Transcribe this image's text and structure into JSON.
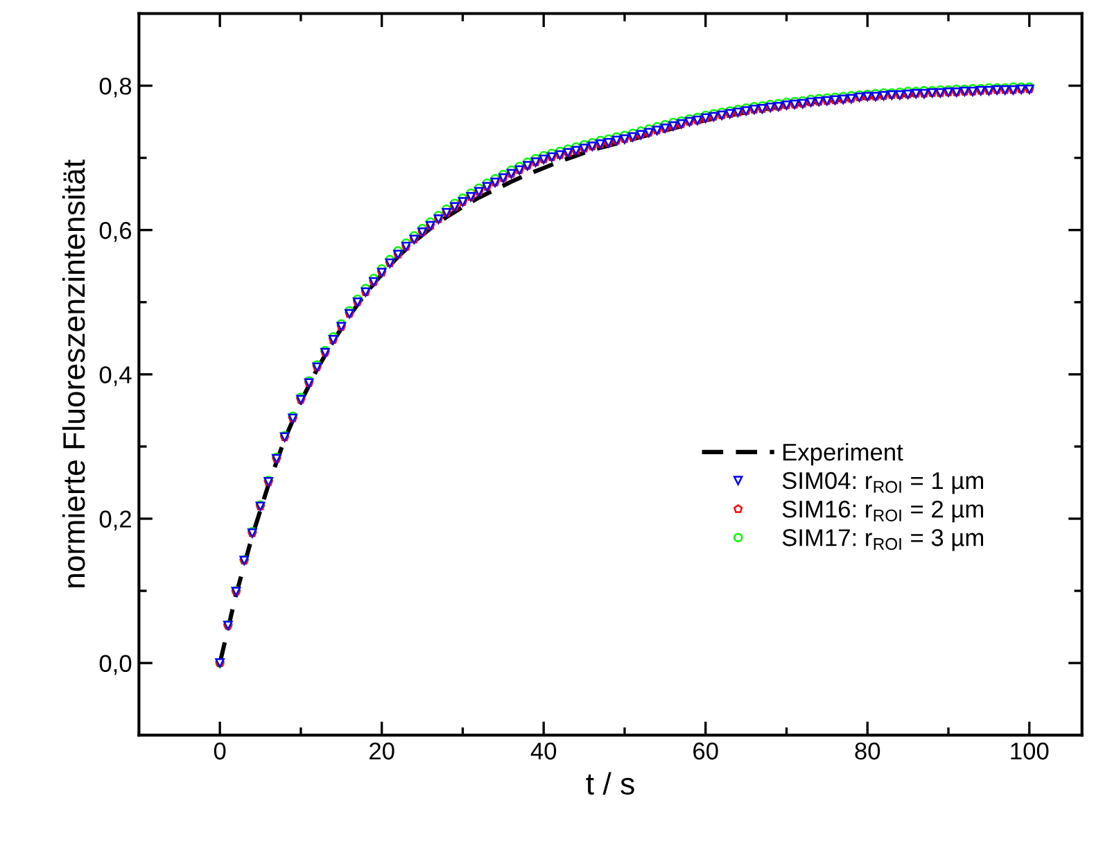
{
  "chart_data": {
    "type": "line",
    "xlabel": "t / s",
    "ylabel": "normierte Fluoreszenzintensität",
    "xlim": [
      -10,
      106.5
    ],
    "ylim": [
      -0.1,
      0.9
    ],
    "xticks": [
      0,
      {
        "value": 10,
        "label": null
      },
      20,
      {
        "value": 30,
        "label": null
      },
      40,
      {
        "value": 50,
        "label": null
      },
      60,
      {
        "value": 70,
        "label": null
      },
      80,
      {
        "value": 90,
        "label": null
      },
      100
    ],
    "yticks": [
      {
        "value": 0,
        "label": "0,0"
      },
      {
        "value": 0.1,
        "label": null
      },
      {
        "value": 0.2,
        "label": "0,2"
      },
      {
        "value": 0.3,
        "label": null
      },
      {
        "value": 0.4,
        "label": "0,4"
      },
      {
        "value": 0.5,
        "label": null
      },
      {
        "value": 0.6,
        "label": "0,6"
      },
      {
        "value": 0.7,
        "label": null
      },
      {
        "value": 0.8,
        "label": "0,8"
      }
    ],
    "grid": false,
    "legend": "right",
    "x": [
      0,
      1,
      2,
      3,
      4,
      5,
      6,
      7,
      8,
      9,
      10,
      11,
      12,
      13,
      14,
      15,
      16,
      17,
      18,
      19,
      20,
      21,
      22,
      23,
      24,
      25,
      26,
      27,
      28,
      29,
      30,
      31,
      32,
      33,
      34,
      35,
      36,
      37,
      38,
      39,
      40,
      41,
      42,
      43,
      44,
      45,
      46,
      47,
      48,
      49,
      50,
      51,
      52,
      53,
      54,
      55,
      56,
      57,
      58,
      59,
      60,
      61,
      62,
      63,
      64,
      65,
      66,
      67,
      68,
      69,
      70,
      71,
      72,
      73,
      74,
      75,
      76,
      77,
      78,
      79,
      80,
      81,
      82,
      83,
      84,
      85,
      86,
      87,
      88,
      89,
      90,
      91,
      92,
      93,
      94,
      95,
      96,
      97,
      98,
      99,
      100
    ],
    "series": [
      {
        "name": "Experiment",
        "color": "#000000",
        "line_style": "dashed",
        "marker": "none",
        "x": [
          0,
          2,
          4,
          6,
          8,
          10,
          12,
          14,
          16,
          18,
          20,
          22,
          24,
          26,
          28,
          30,
          32,
          34,
          36,
          38,
          40,
          42,
          44,
          46,
          48,
          50,
          52,
          54,
          56,
          58,
          60,
          62,
          64,
          66,
          68,
          70,
          72,
          74,
          76,
          78,
          80,
          82,
          84,
          86
        ],
        "values": [
          0.0,
          0.095,
          0.176,
          0.247,
          0.31,
          0.362,
          0.407,
          0.446,
          0.481,
          0.512,
          0.539,
          0.563,
          0.584,
          0.602,
          0.618,
          0.632,
          0.645,
          0.656,
          0.667,
          0.677,
          0.686,
          0.695,
          0.703,
          0.711,
          0.717,
          0.723,
          0.729,
          0.735,
          0.741,
          0.747,
          0.752,
          0.757,
          0.761,
          0.765,
          0.769,
          0.772,
          0.775,
          0.778,
          0.78,
          0.782,
          0.784,
          0.786,
          0.787,
          0.788
        ]
      },
      {
        "name": "SIM04: r$_{ROI}$ = 1 µm",
        "type": "scatter",
        "color": "#0000ff",
        "marker": "triangle",
        "values": [
          0.0,
          0.052,
          0.099,
          0.142,
          0.18,
          0.217,
          0.251,
          0.283,
          0.313,
          0.339,
          0.365,
          0.388,
          0.41,
          0.43,
          0.448,
          0.466,
          0.484,
          0.5,
          0.514,
          0.528,
          0.541,
          0.554,
          0.566,
          0.577,
          0.587,
          0.597,
          0.606,
          0.615,
          0.624,
          0.632,
          0.639,
          0.646,
          0.653,
          0.66,
          0.666,
          0.672,
          0.678,
          0.683,
          0.689,
          0.694,
          0.698,
          0.701,
          0.704,
          0.707,
          0.71,
          0.713,
          0.716,
          0.719,
          0.721,
          0.724,
          0.726,
          0.729,
          0.732,
          0.735,
          0.738,
          0.741,
          0.744,
          0.747,
          0.75,
          0.752,
          0.755,
          0.757,
          0.759,
          0.761,
          0.763,
          0.765,
          0.767,
          0.768,
          0.77,
          0.771,
          0.773,
          0.774,
          0.775,
          0.777,
          0.778,
          0.779,
          0.78,
          0.781,
          0.782,
          0.784,
          0.785,
          0.785,
          0.786,
          0.787,
          0.787,
          0.788,
          0.789,
          0.789,
          0.79,
          0.79,
          0.791,
          0.791,
          0.792,
          0.792,
          0.793,
          0.793,
          0.794,
          0.794,
          0.794,
          0.795,
          0.795
        ]
      },
      {
        "name": "SIM16: r$_{ROI}$ = 2 µm",
        "type": "scatter",
        "color": "#ff0000",
        "values": [
          0.0,
          0.052,
          0.099,
          0.142,
          0.18,
          0.217,
          0.251,
          0.283,
          0.313,
          0.339,
          0.365,
          0.388,
          0.41,
          0.43,
          0.448,
          0.466,
          0.484,
          0.5,
          0.514,
          0.528,
          0.541,
          0.554,
          0.566,
          0.577,
          0.587,
          0.597,
          0.606,
          0.615,
          0.624,
          0.632,
          0.639,
          0.646,
          0.653,
          0.66,
          0.666,
          0.672,
          0.678,
          0.683,
          0.689,
          0.694,
          0.698,
          0.701,
          0.704,
          0.707,
          0.71,
          0.713,
          0.716,
          0.719,
          0.721,
          0.724,
          0.726,
          0.729,
          0.732,
          0.735,
          0.738,
          0.741,
          0.744,
          0.747,
          0.75,
          0.752,
          0.755,
          0.757,
          0.759,
          0.761,
          0.763,
          0.765,
          0.767,
          0.768,
          0.77,
          0.771,
          0.773,
          0.774,
          0.775,
          0.777,
          0.778,
          0.779,
          0.78,
          0.781,
          0.782,
          0.784,
          0.785,
          0.785,
          0.786,
          0.787,
          0.787,
          0.788,
          0.789,
          0.789,
          0.79,
          0.79,
          0.791,
          0.791,
          0.792,
          0.792,
          0.793,
          0.793,
          0.794,
          0.794,
          0.794,
          0.795,
          0.795
        ]
      },
      {
        "name": "SIM17: r$_{ROI}$ = 3 µm",
        "type": "scatter",
        "color": "#00ff00",
        "marker": "circle",
        "values": [
          0.0,
          0.053,
          0.1,
          0.143,
          0.182,
          0.219,
          0.253,
          0.285,
          0.315,
          0.342,
          0.368,
          0.391,
          0.413,
          0.433,
          0.452,
          0.47,
          0.488,
          0.504,
          0.519,
          0.533,
          0.546,
          0.559,
          0.571,
          0.582,
          0.592,
          0.602,
          0.611,
          0.62,
          0.629,
          0.637,
          0.644,
          0.651,
          0.658,
          0.665,
          0.671,
          0.677,
          0.683,
          0.688,
          0.694,
          0.699,
          0.703,
          0.706,
          0.709,
          0.712,
          0.715,
          0.718,
          0.721,
          0.724,
          0.726,
          0.729,
          0.731,
          0.734,
          0.737,
          0.74,
          0.743,
          0.746,
          0.749,
          0.751,
          0.754,
          0.756,
          0.759,
          0.761,
          0.763,
          0.765,
          0.767,
          0.769,
          0.771,
          0.772,
          0.774,
          0.775,
          0.777,
          0.778,
          0.779,
          0.781,
          0.782,
          0.783,
          0.784,
          0.785,
          0.786,
          0.787,
          0.788,
          0.789,
          0.79,
          0.79,
          0.791,
          0.792,
          0.792,
          0.793,
          0.793,
          0.794,
          0.794,
          0.795,
          0.795,
          0.796,
          0.796,
          0.797,
          0.797,
          0.797,
          0.798,
          0.798,
          0.798
        ]
      }
    ]
  }
}
